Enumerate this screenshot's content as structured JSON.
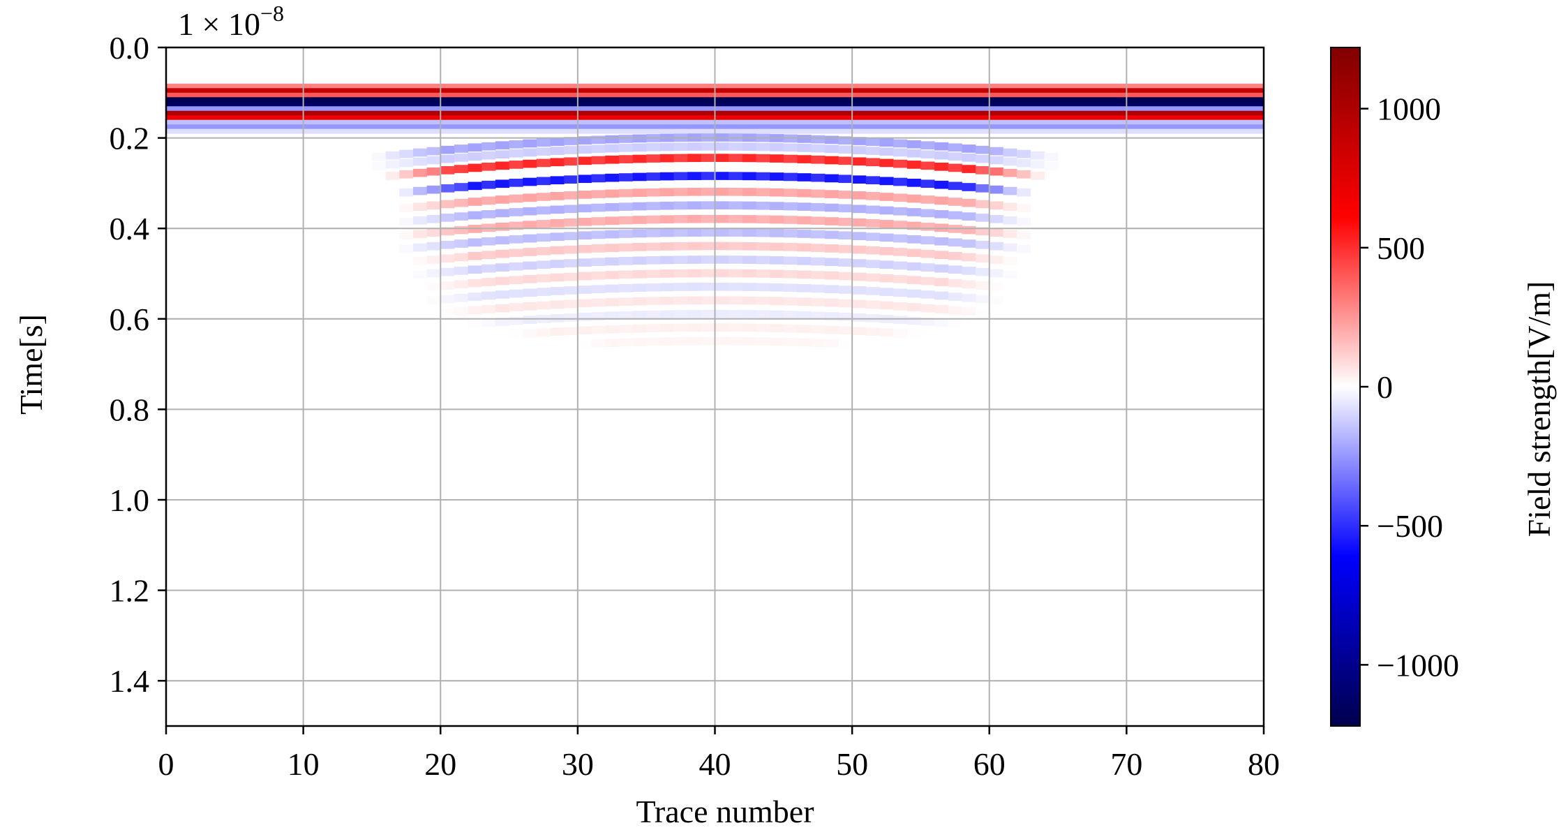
{
  "chart_data": {
    "type": "heatmap",
    "title": "",
    "xlabel": "Trace number",
    "ylabel": "Time[s]",
    "y_scale_factor_label": "1 × 10",
    "y_scale_factor_exponent": "−8",
    "xlim": [
      0,
      80
    ],
    "ylim": [
      0,
      1.5
    ],
    "y_axis_inverted": true,
    "grid": true,
    "x_ticks": [
      0,
      10,
      20,
      30,
      40,
      50,
      60,
      70,
      80
    ],
    "x_tick_labels": [
      "0",
      "10",
      "20",
      "30",
      "40",
      "50",
      "60",
      "70",
      "80"
    ],
    "y_ticks": [
      0.0,
      0.2,
      0.4,
      0.6,
      0.8,
      1.0,
      1.2,
      1.4
    ],
    "y_tick_labels": [
      "0.0",
      "0.2",
      "0.4",
      "0.6",
      "0.8",
      "1.0",
      "1.2",
      "1.4"
    ],
    "colormap": "seismic",
    "colorbar": {
      "label": "Field strength[V/m]",
      "range": [
        -1220,
        1220
      ],
      "ticks": [
        1000,
        500,
        0,
        -500,
        -1000
      ],
      "tick_labels": [
        "1000",
        "500",
        "0",
        "−500",
        "−1000"
      ],
      "colors": [
        "#00004c",
        "#0000ff",
        "#ffffff",
        "#ff0000",
        "#800000"
      ]
    },
    "direct_wave": {
      "x_range": [
        0,
        80
      ],
      "bands": [
        {
          "time": 0.085,
          "value": 300
        },
        {
          "time": 0.095,
          "value": 900
        },
        {
          "time": 0.105,
          "value": 400
        },
        {
          "time": 0.115,
          "value": -1200
        },
        {
          "time": 0.125,
          "value": -1150
        },
        {
          "time": 0.135,
          "value": -250
        },
        {
          "time": 0.145,
          "value": 1000
        },
        {
          "time": 0.155,
          "value": 700
        },
        {
          "time": 0.165,
          "value": -150
        },
        {
          "time": 0.175,
          "value": -250
        },
        {
          "time": 0.185,
          "value": -80
        }
      ]
    },
    "reflection": {
      "center_trace": 40,
      "hyperbola_apex_time": 0.19,
      "ringing_bands": [
        {
          "offset": 0.0,
          "value": -220,
          "half_width": 25
        },
        {
          "offset": 0.02,
          "value": -120,
          "half_width": 25
        },
        {
          "offset": 0.045,
          "value": 520,
          "half_width": 24
        },
        {
          "offset": 0.085,
          "value": -560,
          "half_width": 23
        },
        {
          "offset": 0.12,
          "value": 220,
          "half_width": 23
        },
        {
          "offset": 0.15,
          "value": -190,
          "half_width": 23
        },
        {
          "offset": 0.18,
          "value": 200,
          "half_width": 23
        },
        {
          "offset": 0.21,
          "value": -160,
          "half_width": 23
        },
        {
          "offset": 0.24,
          "value": 130,
          "half_width": 22
        },
        {
          "offset": 0.27,
          "value": -110,
          "half_width": 22
        },
        {
          "offset": 0.3,
          "value": 90,
          "half_width": 21
        },
        {
          "offset": 0.33,
          "value": -75,
          "half_width": 21
        },
        {
          "offset": 0.36,
          "value": 60,
          "half_width": 20
        },
        {
          "offset": 0.39,
          "value": -45,
          "half_width": 18
        },
        {
          "offset": 0.42,
          "value": 35,
          "half_width": 15
        },
        {
          "offset": 0.45,
          "value": 25,
          "half_width": 10
        }
      ]
    }
  }
}
